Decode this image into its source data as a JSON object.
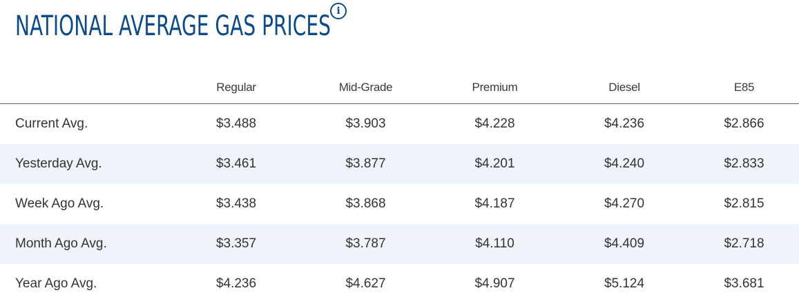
{
  "header": {
    "title": "NATIONAL AVERAGE GAS PRICES",
    "info_icon": "info-icon",
    "accent_color": "#0b4a8b"
  },
  "table": {
    "columns": [
      "",
      "Regular",
      "Mid-Grade",
      "Premium",
      "Diesel",
      "E85"
    ],
    "rows": [
      {
        "label": "Current Avg.",
        "values": [
          "$3.488",
          "$3.903",
          "$4.228",
          "$4.236",
          "$2.866"
        ]
      },
      {
        "label": "Yesterday Avg.",
        "values": [
          "$3.461",
          "$3.877",
          "$4.201",
          "$4.240",
          "$2.833"
        ]
      },
      {
        "label": "Week Ago Avg.",
        "values": [
          "$3.438",
          "$3.868",
          "$4.187",
          "$4.270",
          "$2.815"
        ]
      },
      {
        "label": "Month Ago Avg.",
        "values": [
          "$3.357",
          "$3.787",
          "$4.110",
          "$4.409",
          "$2.718"
        ]
      },
      {
        "label": "Year Ago Avg.",
        "values": [
          "$4.236",
          "$4.627",
          "$4.907",
          "$5.124",
          "$3.681"
        ]
      }
    ]
  }
}
